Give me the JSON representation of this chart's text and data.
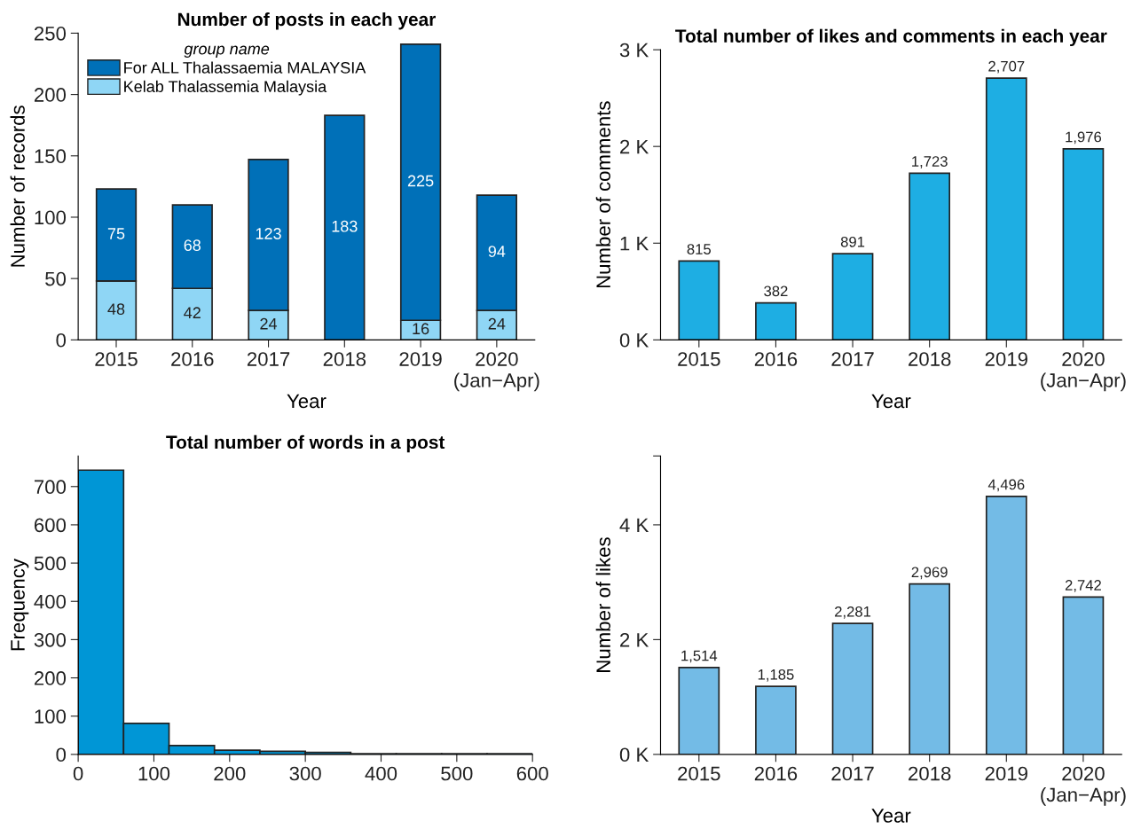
{
  "chart_data": [
    {
      "type": "bar",
      "title": "Number of posts in each year",
      "xlabel": "Year",
      "ylabel": "Number of records",
      "legend_title": "group name",
      "categories": [
        "2015",
        "2016",
        "2017",
        "2018",
        "2019",
        "2020\n(Jan−Apr)"
      ],
      "stacked": true,
      "ylim": [
        0,
        250
      ],
      "yticks": [
        0,
        50,
        100,
        150,
        200,
        250
      ],
      "legend": "top left",
      "data_labels": true,
      "series": [
        {
          "name": "Kelab Thalassemia Malaysia",
          "color": "#8fd6f5",
          "values": [
            48,
            42,
            24,
            null,
            16,
            24
          ]
        },
        {
          "name": "For ALL Thalassaemia MALAYSIA",
          "color": "#0070b8",
          "values": [
            75,
            68,
            123,
            183,
            225,
            94
          ]
        }
      ]
    },
    {
      "type": "bar",
      "title": "Total number of likes and comments in each year",
      "xlabel": "Year",
      "ylabel": "Number of comments",
      "categories": [
        "2015",
        "2016",
        "2017",
        "2018",
        "2019",
        "2020\n(Jan−Apr)"
      ],
      "values": [
        815,
        382,
        891,
        1723,
        2707,
        1976
      ],
      "color": "#1eaee3",
      "ylim": [
        0,
        3000
      ],
      "yticks": [
        {
          "value": 0,
          "label": "0 K"
        },
        {
          "value": 1000,
          "label": "1 K"
        },
        {
          "value": 2000,
          "label": "2 K"
        },
        {
          "value": 3000,
          "label": "3 K"
        }
      ],
      "value_labels": [
        "815",
        "382",
        "891",
        "1,723",
        "2,707",
        "1,976"
      ]
    },
    {
      "type": "histogram",
      "title": "Total number of words in a post",
      "ylabel": "Frequency",
      "bins": [
        0,
        60,
        120,
        180,
        240,
        300,
        360,
        420,
        480,
        540,
        600
      ],
      "values": [
        743,
        81,
        23,
        11,
        8,
        5,
        2,
        2,
        2,
        2
      ],
      "color": "#0096d6",
      "xlim": [
        0,
        600
      ],
      "xticks": [
        0,
        100,
        200,
        300,
        400,
        500,
        600
      ],
      "ylim": [
        0,
        780
      ],
      "yticks": [
        0,
        100,
        200,
        300,
        400,
        500,
        600,
        700
      ]
    },
    {
      "type": "bar",
      "xlabel": "Year",
      "ylabel": "Number of likes",
      "categories": [
        "2015",
        "2016",
        "2017",
        "2018",
        "2019",
        "2020\n(Jan−Apr)"
      ],
      "values": [
        1514,
        1185,
        2281,
        2969,
        4496,
        2742
      ],
      "color": "#73bbe6",
      "ylim": [
        0,
        5200
      ],
      "yticks": [
        {
          "value": 0,
          "label": "0 K"
        },
        {
          "value": 2000,
          "label": "2 K"
        },
        {
          "value": 4000,
          "label": "4 K"
        },
        {
          "value": 5200,
          "label": null
        }
      ],
      "value_labels": [
        "1,514",
        "1,185",
        "2,281",
        "2,969",
        "4,496",
        "2,742"
      ]
    }
  ]
}
